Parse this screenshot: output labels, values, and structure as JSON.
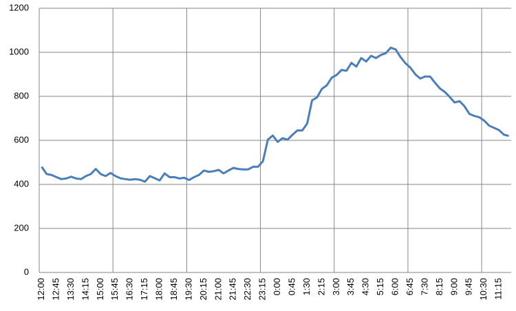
{
  "chart_data": {
    "type": "line",
    "categories": [
      "12:00",
      null,
      null,
      "12:45",
      null,
      null,
      "13:30",
      null,
      null,
      "14:15",
      null,
      null,
      "15:00",
      null,
      null,
      "15:45",
      null,
      null,
      "16:30",
      null,
      null,
      "17:15",
      null,
      null,
      "18:00",
      null,
      null,
      "18:45",
      null,
      null,
      "19:30",
      null,
      null,
      "20:15",
      null,
      null,
      "21:00",
      null,
      null,
      "21:45",
      null,
      null,
      "22:30",
      null,
      null,
      "23:15",
      null,
      null,
      "0:00",
      null,
      null,
      "0:45",
      null,
      null,
      "1:30",
      null,
      null,
      "2:15",
      null,
      null,
      "3:00",
      null,
      null,
      "3:45",
      null,
      null,
      "4:30",
      null,
      null,
      "5:15",
      null,
      null,
      "6:00",
      null,
      null,
      "6:45",
      null,
      null,
      "7:30",
      null,
      null,
      "8:15",
      null,
      null,
      "9:00",
      null,
      null,
      "9:45",
      null,
      null,
      "10:30",
      null,
      null,
      "11:15",
      null,
      null
    ],
    "values": [
      480,
      447,
      443,
      433,
      424,
      427,
      435,
      427,
      424,
      438,
      447,
      470,
      447,
      438,
      452,
      438,
      428,
      424,
      421,
      424,
      421,
      412,
      438,
      428,
      418,
      450,
      433,
      433,
      427,
      430,
      420,
      433,
      443,
      463,
      457,
      460,
      466,
      450,
      463,
      475,
      470,
      468,
      468,
      480,
      480,
      505,
      603,
      622,
      593,
      610,
      603,
      625,
      645,
      645,
      676,
      782,
      795,
      834,
      850,
      885,
      897,
      920,
      916,
      952,
      935,
      974,
      958,
      984,
      974,
      988,
      996,
      1021,
      1013,
      978,
      950,
      930,
      900,
      881,
      890,
      890,
      862,
      836,
      820,
      797,
      772,
      778,
      755,
      720,
      711,
      705,
      690,
      667,
      657,
      647,
      626,
      620
    ],
    "color": "#4a7ebb",
    "ylim": [
      0,
      1200
    ],
    "yticks": [
      0,
      200,
      400,
      600,
      800,
      1000,
      1200
    ],
    "grid": true
  }
}
